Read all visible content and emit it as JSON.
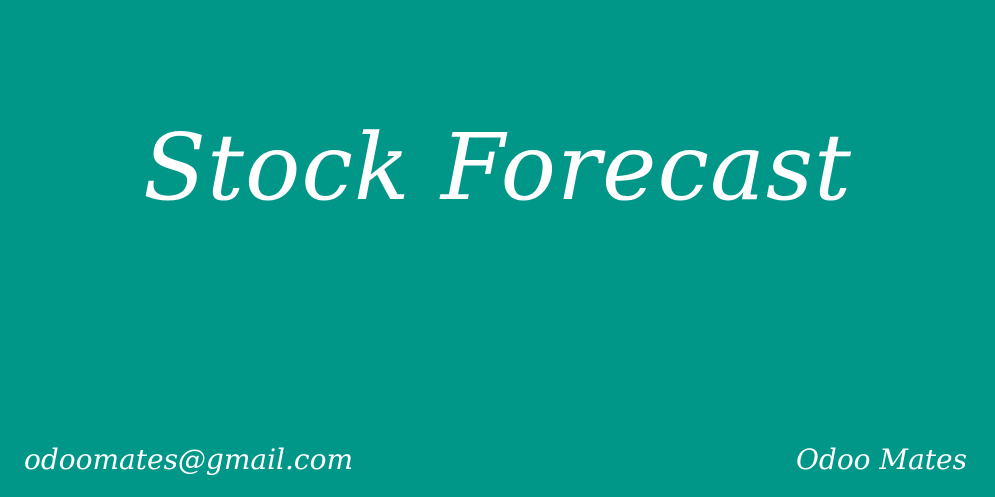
{
  "title": "Stock Forecast",
  "footer": {
    "email": "odoomates@gmail.com",
    "brand": "Odoo Mates"
  },
  "colors": {
    "background": "#009688",
    "text": "#ffffff"
  }
}
